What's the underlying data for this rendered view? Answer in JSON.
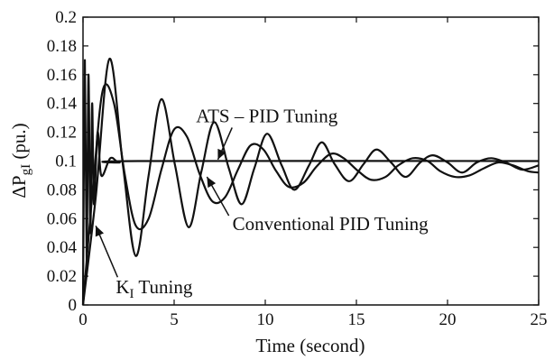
{
  "colors": {
    "line": "#111111",
    "background": "#ffffff"
  },
  "chart_data": {
    "type": "line",
    "title": "",
    "xlabel": "Time (second)",
    "ylabel": {
      "main": "ΔP",
      "sub": "gI",
      "rest": " (pu.)"
    },
    "xlim": [
      0,
      25
    ],
    "ylim": [
      0,
      0.2
    ],
    "xticks": [
      0,
      5,
      10,
      15,
      20,
      25
    ],
    "xtick_labels": [
      "0",
      "5",
      "10",
      "15",
      "20",
      "25"
    ],
    "yticks": [
      0,
      0.02,
      0.04,
      0.06,
      0.08,
      0.1,
      0.12,
      0.14,
      0.16,
      0.18,
      0.2
    ],
    "ytick_labels": [
      "0",
      "0.02",
      "0.04",
      "0.06",
      "0.08",
      "0.1",
      "0.12",
      "0.14",
      "0.16",
      "0.18",
      "0.2"
    ],
    "grid": false,
    "legend": "none",
    "series": [
      {
        "x": [
          0,
          0.1,
          0.2,
          0.3,
          0.4,
          0.5,
          0.6,
          0.8,
          1.0,
          1.5,
          2.0,
          3.0,
          25
        ],
        "y": [
          0,
          0.17,
          0.03,
          0.16,
          0.05,
          0.14,
          0.07,
          0.12,
          0.09,
          0.102,
          0.099,
          0.1,
          0.1
        ]
      },
      {
        "x": [
          0,
          0.7,
          1.45,
          2.2,
          2.9,
          3.6,
          4.3,
          5.05,
          5.8,
          6.5,
          7.2,
          8.0,
          8.7,
          9.4,
          10.1,
          10.9,
          11.6,
          12.4,
          13.1,
          13.8,
          14.6,
          15.4,
          16.1,
          16.9,
          17.7,
          18.5,
          19.2,
          20.0,
          20.8,
          21.6,
          22.4,
          23.2,
          24.1,
          25
        ],
        "y": [
          0.0,
          0.075,
          0.171,
          0.096,
          0.034,
          0.09,
          0.143,
          0.097,
          0.054,
          0.093,
          0.127,
          0.095,
          0.07,
          0.095,
          0.119,
          0.097,
          0.08,
          0.097,
          0.113,
          0.098,
          0.086,
          0.098,
          0.108,
          0.099,
          0.089,
          0.099,
          0.104,
          0.099,
          0.092,
          0.099,
          0.102,
          0.099,
          0.094,
          0.097
        ]
      },
      {
        "x": [
          0,
          0.6,
          1.1,
          1.7,
          2.3,
          2.9,
          3.6,
          4.3,
          5.0,
          5.7,
          6.4,
          7.1,
          7.8,
          8.5,
          9.2,
          9.9,
          10.6,
          11.3,
          12.1,
          12.8,
          13.6,
          14.3,
          15.1,
          15.8,
          16.6,
          17.3,
          18.1,
          18.9,
          19.6,
          20.4,
          21.2,
          22.0,
          22.8,
          23.6,
          24.4,
          25
        ],
        "y": [
          0.0,
          0.09,
          0.15,
          0.14,
          0.09,
          0.055,
          0.06,
          0.094,
          0.122,
          0.117,
          0.091,
          0.072,
          0.075,
          0.094,
          0.111,
          0.108,
          0.093,
          0.082,
          0.085,
          0.096,
          0.105,
          0.102,
          0.093,
          0.087,
          0.089,
          0.097,
          0.102,
          0.1,
          0.093,
          0.089,
          0.09,
          0.095,
          0.099,
          0.097,
          0.093,
          0.092
        ]
      }
    ],
    "annotations": [
      {
        "text": "ATS – PID Tuning",
        "x": 6.2,
        "y": 0.127,
        "arrow_to": [
          7.4,
          0.101
        ]
      },
      {
        "text": "Conventional PID Tuning",
        "x": 8.2,
        "y": 0.052,
        "arrow_to": [
          6.8,
          0.089
        ]
      },
      {
        "text": "K",
        "sub": "I",
        "rest": " Tuning",
        "x": 1.8,
        "y": 0.008,
        "arrow_to": [
          0.7,
          0.055
        ]
      }
    ]
  }
}
